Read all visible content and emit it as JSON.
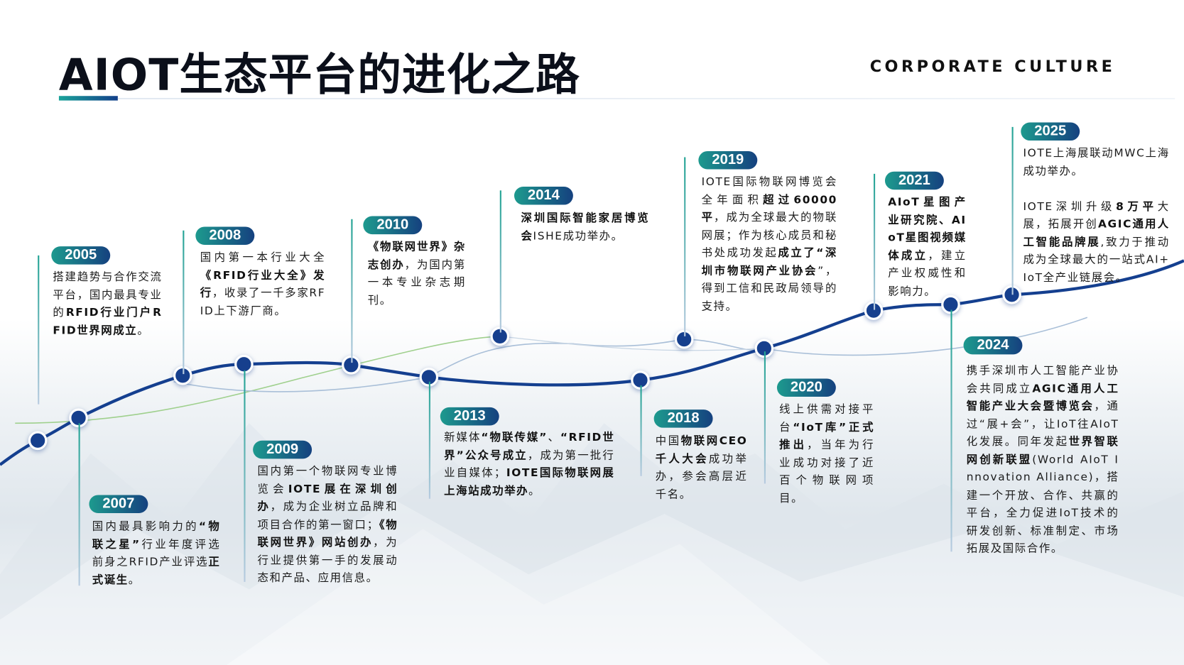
{
  "header": {
    "title": "AIOT生态平台的进化之路",
    "subtitle": "CORPORATE CULTURE"
  },
  "colors": {
    "accent_teal": "#1d9a8e",
    "accent_navy": "#15417f",
    "curve": "#143f8f"
  },
  "events": [
    {
      "year": "2005",
      "segments": [
        {
          "t": "搭建趋势与合作交流平台，国内最具专业的"
        },
        {
          "t": "RFID行业门户RFID世界网成立",
          "b": true
        },
        {
          "t": "。"
        }
      ]
    },
    {
      "year": "2007",
      "segments": [
        {
          "t": "国内最具影响力的"
        },
        {
          "t": "“物联之星”",
          "b": true
        },
        {
          "t": "行业年度评选前身之RFID产业评选"
        },
        {
          "t": "正式诞生",
          "b": true
        },
        {
          "t": "。"
        }
      ]
    },
    {
      "year": "2008",
      "segments": [
        {
          "t": "国内第一本行业大全"
        },
        {
          "t": "《RFID行业大全》发行",
          "b": true
        },
        {
          "t": "，收录了一千多家RFID上下游厂商。"
        }
      ]
    },
    {
      "year": "2009",
      "segments": [
        {
          "t": "国内第一个物联网专业博览会"
        },
        {
          "t": "IOTE展在深圳创办",
          "b": true
        },
        {
          "t": "，成为企业树立品牌和项目合作的第一窗口；"
        },
        {
          "t": "《物联网世界》网站创办",
          "b": true
        },
        {
          "t": "，为行业提供第一手的发展动态和产品、应用信息。"
        }
      ]
    },
    {
      "year": "2010",
      "segments": [
        {
          "t": "《物联网世界》杂志创办",
          "b": true
        },
        {
          "t": "，为国内第一本专业杂志期刊。"
        }
      ]
    },
    {
      "year": "2013",
      "segments": [
        {
          "t": "新媒体"
        },
        {
          "t": "“物联传媒”",
          "b": true
        },
        {
          "t": "、"
        },
        {
          "t": "“RFID世界”公众号成立",
          "b": true
        },
        {
          "t": "，成为第一批行业自媒体；"
        },
        {
          "t": "IOTE国际物联网展上海站成功举办",
          "b": true
        },
        {
          "t": "。"
        }
      ]
    },
    {
      "year": "2014",
      "segments": [
        {
          "t": "深圳国际智能家居博览会",
          "b": true
        },
        {
          "t": "ISHE成功举办。"
        }
      ]
    },
    {
      "year": "2018",
      "segments": [
        {
          "t": "中国"
        },
        {
          "t": "物联网CEO千人大会",
          "b": true
        },
        {
          "t": "成功举办，参会高层近千名。"
        }
      ]
    },
    {
      "year": "2019",
      "segments": [
        {
          "t": "IOTE国际物联网博览会全年面积"
        },
        {
          "t": "超过60000平",
          "b": true
        },
        {
          "t": "，成为全球最大的物联网展；作为核心成员和秘书处成功发起"
        },
        {
          "t": "成立了“深圳市物联网产业协会",
          "b": true
        },
        {
          "t": "”，得到工信和民政局领导的支持。"
        }
      ]
    },
    {
      "year": "2020",
      "segments": [
        {
          "t": "线上供需对接平台"
        },
        {
          "t": "“IoT库”正式推出",
          "b": true
        },
        {
          "t": "，当年为行业成功对接了近百个物联网项目。"
        }
      ]
    },
    {
      "year": "2021",
      "segments": [
        {
          "t": "AIoT星图产业研究院、AIoT星图视频媒体成立",
          "b": true
        },
        {
          "t": "，建立产业权威性和影响力。"
        }
      ]
    },
    {
      "year": "2024",
      "segments": [
        {
          "t": "携手深圳市人工智能产业协会共同成立"
        },
        {
          "t": "AGIC通用人工智能产业大会暨博览会",
          "b": true
        },
        {
          "t": "，通过“展+会”，让IoT往AIoT化发展。"
        },
        {
          "t": "同年发起"
        },
        {
          "t": "世界智联网创新联盟",
          "b": true
        },
        {
          "t": "(World AIoT Innovation Alliance)，搭建一个开放、合作、共赢的平台，全力促进IoT技术的研发创新、标准制定、市场拓展及国际合作。"
        }
      ]
    },
    {
      "year": "2025",
      "segments": [
        {
          "t": "IOTE上海展联动MWC上海成功举办。"
        },
        {
          "t": "IOTE深圳升级"
        },
        {
          "t": "8万平",
          "b": true
        },
        {
          "t": "大展，拓展开创"
        },
        {
          "t": "AGIC通用人工智能品牌展",
          "b": true
        },
        {
          "t": ",致力于推动成为全球最大的一站式AI+IoT全产业链展会。"
        }
      ]
    }
  ]
}
